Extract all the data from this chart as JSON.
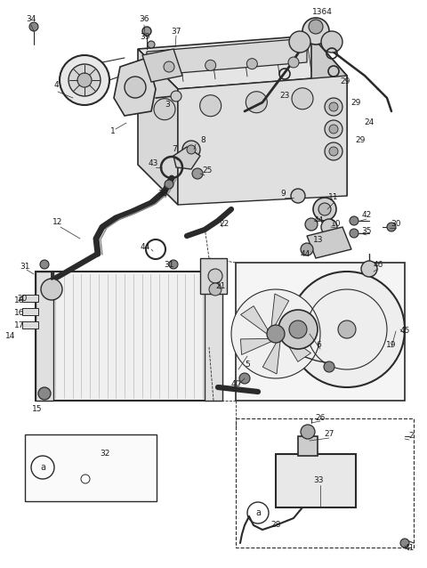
{
  "bg_color": "#ffffff",
  "line_color": "#2a2a2a",
  "label_color": "#1a1a1a",
  "fig_width": 4.8,
  "fig_height": 6.38,
  "dpi": 100
}
